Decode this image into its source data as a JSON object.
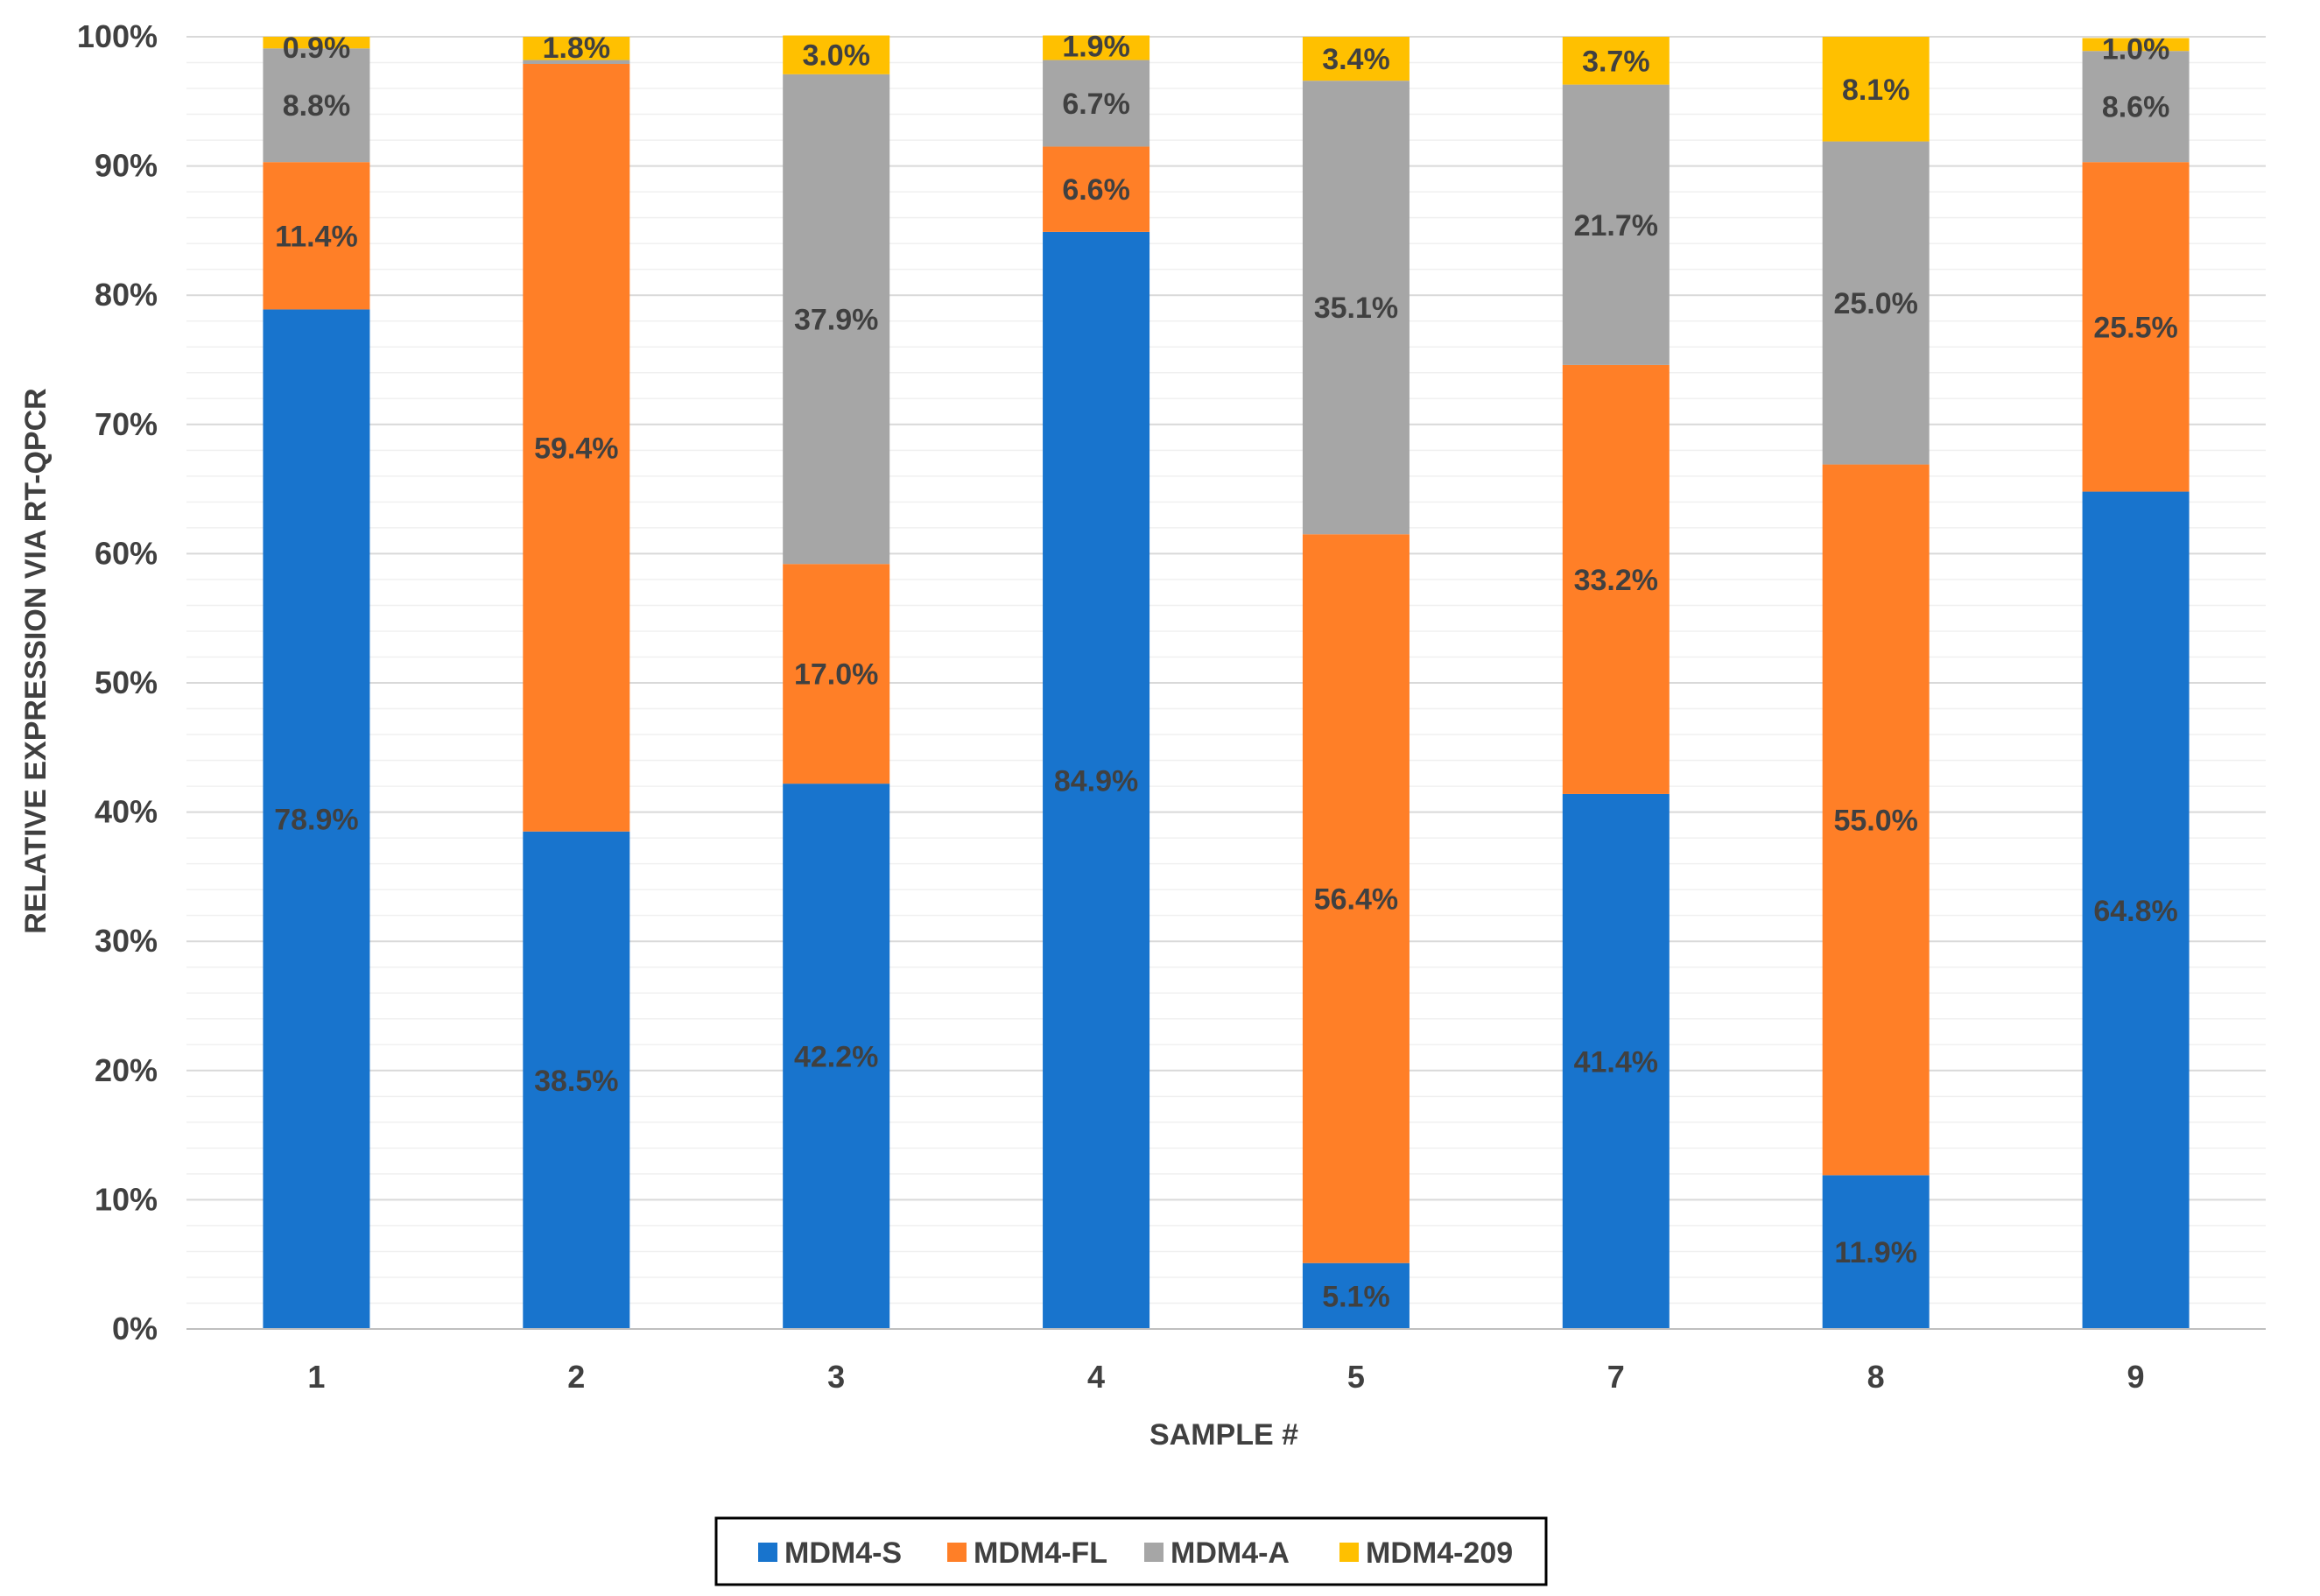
{
  "chart_data": {
    "type": "bar",
    "stacked": true,
    "percent_stacked": true,
    "xlabel": "SAMPLE #",
    "ylabel": "RELATIVE EXPRESSION VIA RT-QPCR",
    "ylim": [
      0,
      100
    ],
    "y_ticks": [
      "0%",
      "10%",
      "20%",
      "30%",
      "40%",
      "50%",
      "60%",
      "70%",
      "80%",
      "90%",
      "100%"
    ],
    "categories": [
      "1",
      "2",
      "3",
      "4",
      "5",
      "7",
      "8",
      "9"
    ],
    "series": [
      {
        "name": "MDM4-S",
        "color": "#1874CD",
        "values": [
          78.9,
          38.5,
          42.2,
          84.9,
          5.1,
          41.4,
          11.9,
          64.8
        ],
        "labels": [
          "78.9%",
          "38.5%",
          "42.2%",
          "84.9%",
          "5.1%",
          "41.4%",
          "11.9%",
          "64.8%"
        ]
      },
      {
        "name": "MDM4-FL",
        "color": "#FF7F27",
        "values": [
          11.4,
          59.4,
          17.0,
          6.6,
          56.4,
          33.2,
          55.0,
          25.5
        ],
        "labels": [
          "11.4%",
          "59.4%",
          "17.0%",
          "6.6%",
          "56.4%",
          "33.2%",
          "55.0%",
          "25.5%"
        ]
      },
      {
        "name": "MDM4-A",
        "color": "#A6A6A6",
        "values": [
          8.8,
          0.3,
          37.9,
          6.7,
          35.1,
          21.7,
          25.0,
          8.6
        ],
        "labels": [
          "8.8%",
          "",
          "37.9%",
          "6.7%",
          "35.1%",
          "21.7%",
          "25.0%",
          "8.6%"
        ]
      },
      {
        "name": "MDM4-209",
        "color": "#FFC000",
        "values": [
          0.9,
          1.8,
          3.0,
          1.9,
          3.4,
          3.7,
          8.1,
          1.0
        ],
        "labels": [
          "0.9%",
          "1.8%",
          "3.0%",
          "1.9%",
          "3.4%",
          "3.7%",
          "8.1%",
          "1.0%"
        ]
      }
    ],
    "legend_position": "bottom",
    "grid": true
  }
}
